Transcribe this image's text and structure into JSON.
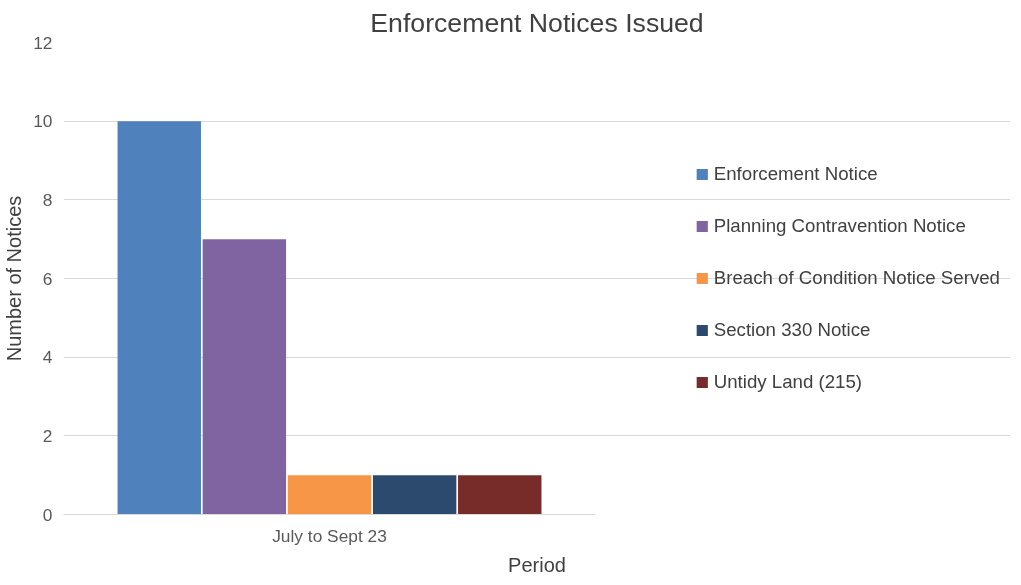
{
  "chart_data": {
    "type": "bar",
    "title": "Enforcement Notices Issued",
    "xlabel": "Period",
    "ylabel": "Number of Notices",
    "categories": [
      "July to Sept 23"
    ],
    "series": [
      {
        "name": "Enforcement Notice",
        "color": "#4f81bd",
        "values": [
          10
        ]
      },
      {
        "name": "Planning Contravention Notice",
        "color": "#8064a2",
        "values": [
          7
        ]
      },
      {
        "name": "Breach of Condition Notice Served",
        "color": "#f79646",
        "values": [
          1
        ]
      },
      {
        "name": "Section 330 Notice",
        "color": "#2c4a6e",
        "values": [
          1
        ]
      },
      {
        "name": "Untidy Land (215)",
        "color": "#772c2a",
        "values": [
          1
        ]
      }
    ],
    "ylim": [
      0,
      12
    ],
    "yticks": [
      0,
      2,
      4,
      6,
      8,
      10,
      12
    ],
    "grid": "y",
    "legend": "right"
  }
}
